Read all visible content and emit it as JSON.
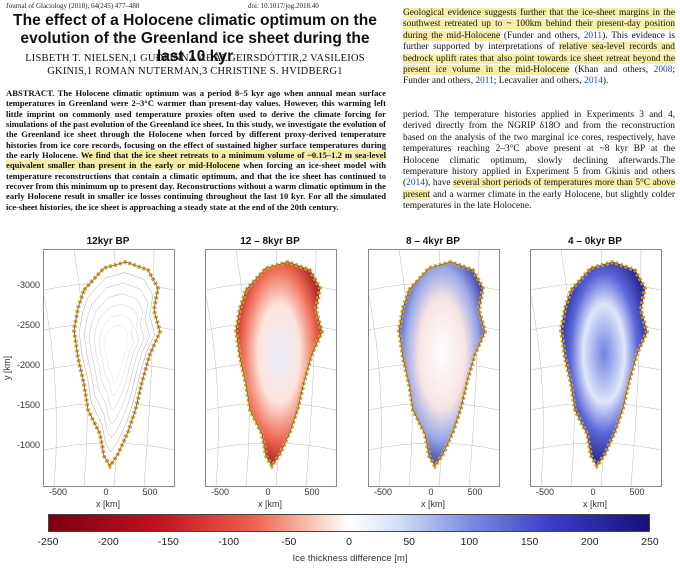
{
  "header": {
    "journal": "Journal of Glaciology (2018), 64(245) 477–488",
    "doi": "doi: 10.1017/jog.2018.40"
  },
  "title": "The effect of a Holocene climatic optimum on the evolution of the Greenland ice sheet during the last 10 kyr",
  "authors": "LISBETH T. NIELSEN,1 GUÐFINNA AÐALGEIRSDÓTTIR,2 VASILEIOS GKINIS,1 ROMAN NUTERMAN,3 CHRISTINE S. HVIDBERG1",
  "abstract": {
    "label": "ABSTRACT.",
    "part1": " The Holocene climatic optimum was a period 8–5 kyr ago when annual mean surface temperatures in Greenland were 2–3°C warmer than present-day values. However, this warming left little imprint on commonly used temperature proxies often used to derive the climate forcing for simulations of the past evolution of the Greenland ice sheet. In this study, we investigate the evolution of the Greenland ice sheet through the Holocene when forced by different proxy-derived temperature histories from ice core records, focusing on the effect of sustained higher surface temperatures during the early Holocene. ",
    "highlight": "We find that the ice sheet retreats to a minimum volume of ~0.15–1.2 m sea-level equivalent smaller than present in the early or mid-Holocene",
    "part2": " when forcing an ice-sheet model with temperature reconstructions that contain a climatic optimum, and that the ice sheet has continued to recover from this minimum up to present day. Reconstructions without a warm climatic optimum in the early Holocene result in smaller ice losses continuing throughout the last 10 kyr. For all the simulated ice-sheet histories, the ice sheet is approaching a steady state at the end of the 20th century."
  },
  "right_col": {
    "p1_hl1": "Geological evidence suggests further that the ice-sheet margins in the southwest retreated up to ~ 100km behind their present-day position during the mid-Holocene",
    "p1_c1": " (Funder and others, ",
    "p1_c1y": "2011",
    "p1_c2": "). This evidence is further supported by interpretations of ",
    "p1_hl2": "relative sea-level records and bedrock uplift rates that also point towards ice sheet retreat beyond the present ice volume in the mid-Holocene",
    "p1_c3": " (Khan and others, ",
    "p1_c3y": "2008",
    "p1_c4": "; Funder and others, ",
    "p1_c4y": "2011",
    "p1_c5": "; Lecavalier and others, ",
    "p1_c5y": "2014",
    "p1_c6": ").",
    "p2_a": "period. The temperature histories applied in Experiments 3 and 4, derived directly from the NGRIP δ18O and from the reconstruction based on the analysis of the two marginal ice cores, respectively, have temperatures reaching 2–3°C above present at ~8 kyr BP at the Holocene climatic optimum, slowly declining afterwards.The temperature history applied in Experiment 5 from Gkinis and others (",
    "p2_y": "2014",
    "p2_b": "), have ",
    "p2_hl": "several short periods of temperatures more than 5°C above present",
    "p2_c": " and a warmer climate in the early Holocene, but slightly colder temperatures in the late Holocene."
  },
  "figure": {
    "panels": [
      {
        "title": "12kyr BP",
        "mode": "contour"
      },
      {
        "title": "12 – 8kyr BP",
        "mode": "red"
      },
      {
        "title": "8 – 4kyr BP",
        "mode": "mixed"
      },
      {
        "title": "4 – 0kyr BP",
        "mode": "blue"
      }
    ],
    "y_label": "y [km]",
    "x_label": "x [km]",
    "y_ticks": [
      "-3000",
      "-2500",
      "-2000",
      "-1500",
      "-1000"
    ],
    "x_ticks": [
      "-500",
      "0",
      "500"
    ],
    "colorbar": {
      "ticks": [
        "-250",
        "-200",
        "-150",
        "-100",
        "-50",
        "0",
        "50",
        "100",
        "150",
        "200",
        "250"
      ],
      "label": "Ice thickness difference [m]"
    }
  }
}
